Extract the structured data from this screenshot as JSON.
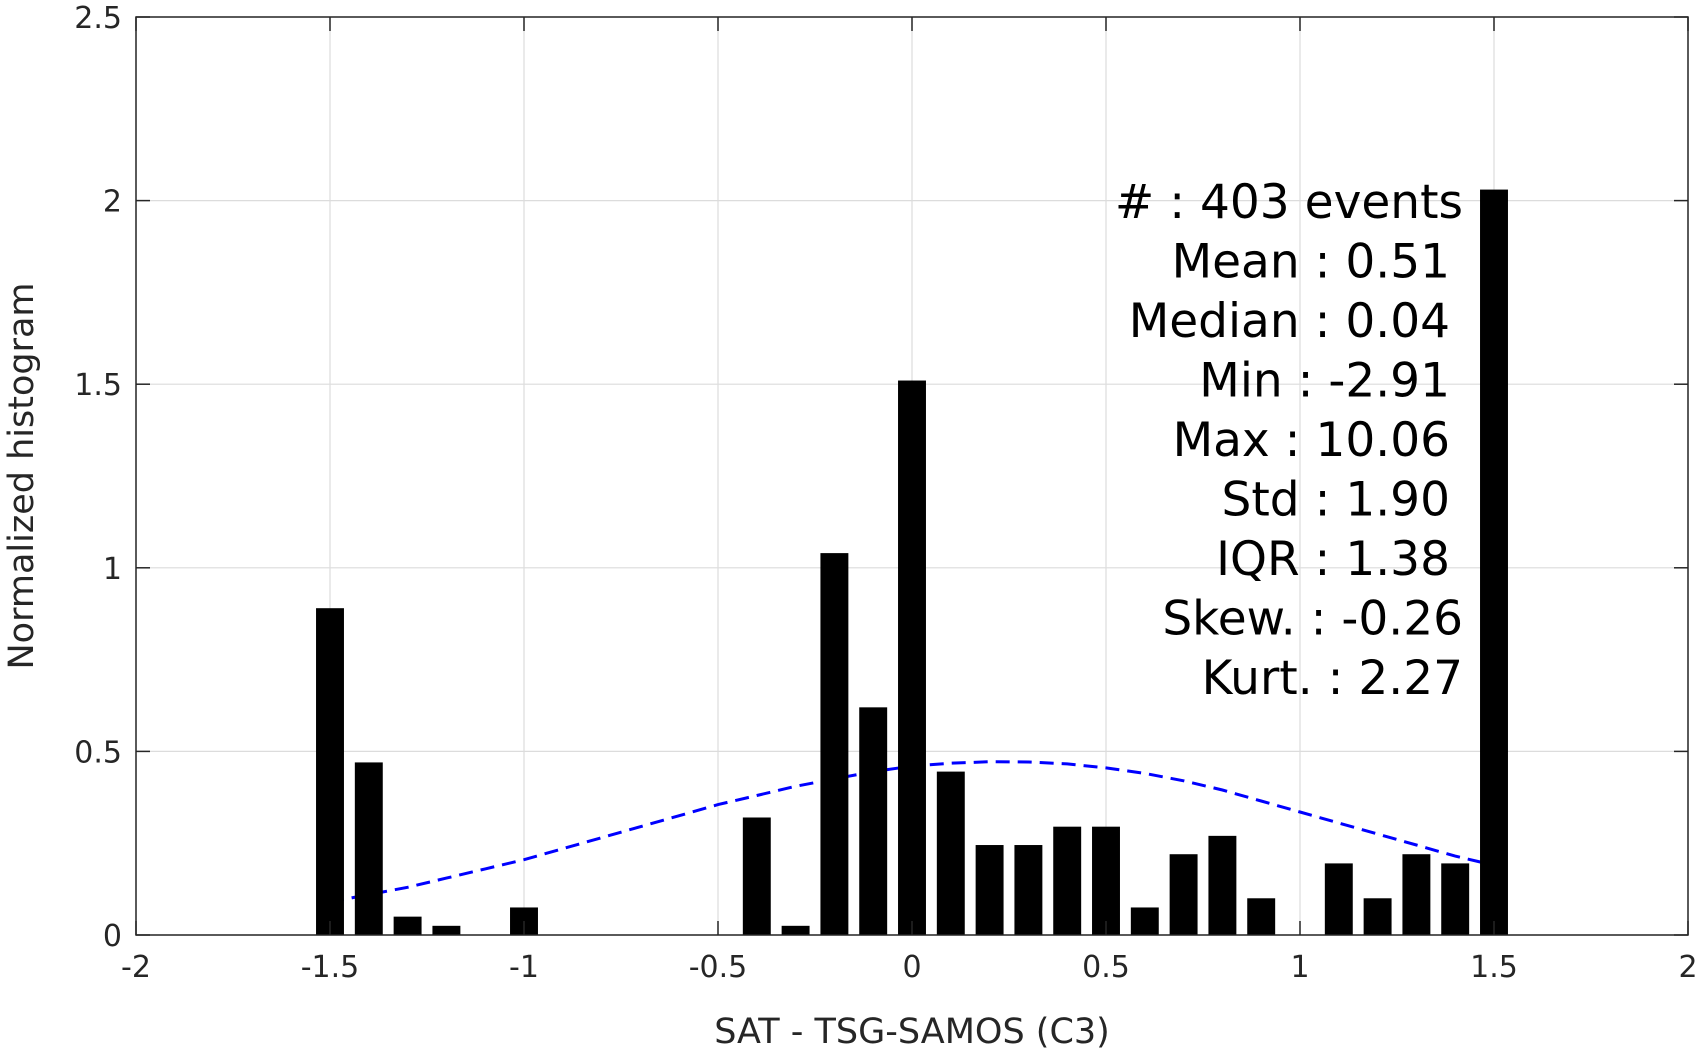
{
  "chart_data": {
    "type": "bar",
    "xlabel": "SAT - TSG-SAMOS (C3)",
    "ylabel": "Normalized histogram",
    "xlim": [
      -2,
      2
    ],
    "ylim": [
      0,
      2.5
    ],
    "grid": true,
    "x_ticks": [
      -2,
      -1.5,
      -1,
      -0.5,
      0,
      0.5,
      1,
      1.5,
      2
    ],
    "x_tick_labels": [
      "-2",
      "-1.5",
      "-1",
      "-0.5",
      "0",
      "0.5",
      "1",
      "1.5",
      "2"
    ],
    "y_ticks": [
      0,
      0.5,
      1,
      1.5,
      2,
      2.5
    ],
    "y_tick_labels": [
      "0",
      "0.5",
      "1",
      "1.5",
      "2",
      "2.5"
    ],
    "bar_color": "#000000",
    "bar_width": 0.072,
    "series": [
      {
        "x": [
          -1.5,
          -1.4,
          -1.3,
          -1.2,
          -1.0,
          -0.4,
          -0.3,
          -0.2,
          -0.1,
          0.0,
          0.1,
          0.2,
          0.3,
          0.4,
          0.5,
          0.6,
          0.7,
          0.8,
          0.9,
          1.1,
          1.2,
          1.3,
          1.4,
          1.5
        ],
        "values": [
          0.89,
          0.47,
          0.05,
          0.025,
          0.075,
          0.32,
          0.025,
          1.04,
          0.62,
          1.51,
          0.445,
          0.245,
          0.245,
          0.295,
          0.295,
          0.075,
          0.22,
          0.27,
          0.1,
          0.195,
          0.1,
          0.22,
          0.195,
          2.03
        ]
      }
    ],
    "fit_curve": {
      "style": "dashed",
      "color": "#0000ff",
      "x": [
        -1.5,
        -1.4,
        -1.3,
        -1.2,
        -1.1,
        -1.0,
        -0.9,
        -0.8,
        -0.7,
        -0.6,
        -0.5,
        -0.4,
        -0.3,
        -0.2,
        -0.1,
        0.0,
        0.1,
        0.2,
        0.3,
        0.4,
        0.5,
        0.6,
        0.7,
        0.8,
        0.9,
        1.0,
        1.1,
        1.2,
        1.3,
        1.4,
        1.5
      ],
      "y": [
        0.09,
        0.11,
        0.13,
        0.155,
        0.18,
        0.205,
        0.235,
        0.265,
        0.295,
        0.325,
        0.355,
        0.38,
        0.405,
        0.425,
        0.445,
        0.46,
        0.468,
        0.472,
        0.471,
        0.466,
        0.455,
        0.44,
        0.42,
        0.395,
        0.365,
        0.335,
        0.305,
        0.275,
        0.245,
        0.215,
        0.19
      ]
    },
    "stats_lines": [
      "#  : 403 events",
      "Mean : 0.51",
      "Median : 0.04",
      "Min : -2.91",
      "Max : 10.06",
      "Std : 1.90",
      "IQR : 1.38",
      "Skew. : -0.26",
      "Kurt. : 2.27"
    ]
  }
}
